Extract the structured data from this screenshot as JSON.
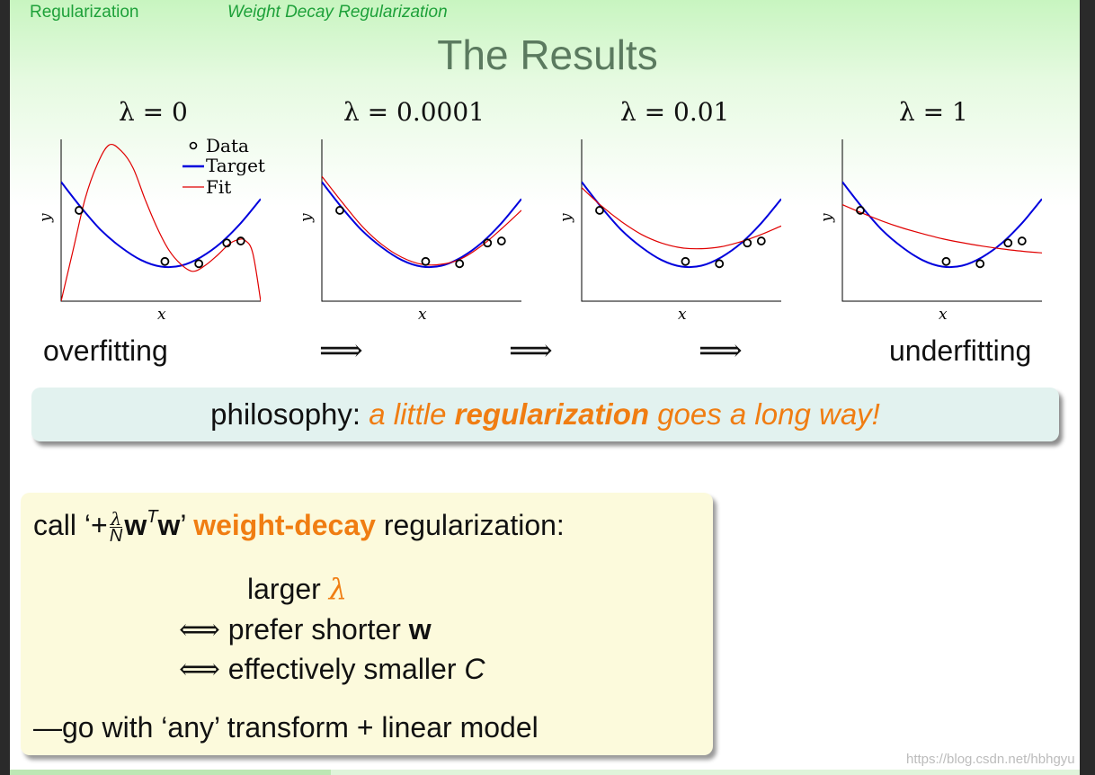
{
  "header": {
    "section": "Regularization",
    "subsection": "Weight Decay Regularization"
  },
  "title": "The Results",
  "panels": [
    {
      "lambda_label": "λ = 0",
      "lambda": 0,
      "fit": [
        [
          0,
          -1.2
        ],
        [
          0.06,
          0.6
        ],
        [
          0.12,
          2.4
        ],
        [
          0.18,
          3.6
        ],
        [
          0.24,
          4.3
        ],
        [
          0.3,
          4.1
        ],
        [
          0.36,
          3.5
        ],
        [
          0.42,
          2.4
        ],
        [
          0.48,
          1.4
        ],
        [
          0.54,
          0.6
        ],
        [
          0.6,
          0.1
        ],
        [
          0.66,
          -0.15
        ],
        [
          0.72,
          0.05
        ],
        [
          0.78,
          0.4
        ],
        [
          0.84,
          0.8
        ],
        [
          0.88,
          0.95
        ],
        [
          0.92,
          0.95
        ],
        [
          0.96,
          0.5
        ],
        [
          1,
          -1.2
        ]
      ]
    },
    {
      "lambda_label": "λ = 0.0001",
      "lambda": 0.0001,
      "fit": [
        [
          0,
          3.2
        ],
        [
          0.1,
          2.3
        ],
        [
          0.2,
          1.45
        ],
        [
          0.3,
          0.8
        ],
        [
          0.4,
          0.35
        ],
        [
          0.5,
          0.1
        ],
        [
          0.6,
          0.1
        ],
        [
          0.7,
          0.3
        ],
        [
          0.8,
          0.75
        ],
        [
          0.9,
          1.35
        ],
        [
          1,
          2.0
        ]
      ]
    },
    {
      "lambda_label": "λ = 0.01",
      "lambda": 0.01,
      "fit": [
        [
          0,
          2.8
        ],
        [
          0.1,
          2.15
        ],
        [
          0.2,
          1.6
        ],
        [
          0.3,
          1.15
        ],
        [
          0.4,
          0.85
        ],
        [
          0.5,
          0.68
        ],
        [
          0.6,
          0.65
        ],
        [
          0.7,
          0.72
        ],
        [
          0.8,
          0.9
        ],
        [
          0.9,
          1.15
        ],
        [
          1,
          1.45
        ]
      ]
    },
    {
      "lambda_label": "λ = 1",
      "lambda": 1,
      "fit": [
        [
          0,
          2.2
        ],
        [
          0.1,
          1.9
        ],
        [
          0.2,
          1.62
        ],
        [
          0.3,
          1.38
        ],
        [
          0.4,
          1.18
        ],
        [
          0.5,
          1.0
        ],
        [
          0.6,
          0.86
        ],
        [
          0.7,
          0.74
        ],
        [
          0.8,
          0.64
        ],
        [
          0.9,
          0.56
        ],
        [
          1,
          0.5
        ]
      ]
    }
  ],
  "chart_data": {
    "type": "line",
    "title": "",
    "xlabel": "x",
    "ylabel": "y",
    "xlim": [
      0,
      1
    ],
    "ylim": [
      -1.2,
      4.5
    ],
    "legend": [
      "Data",
      "Target",
      "Fit"
    ],
    "legend_placement": "top-right",
    "target": [
      [
        0,
        3.0
      ],
      [
        0.1,
        2.1
      ],
      [
        0.2,
        1.3
      ],
      [
        0.3,
        0.7
      ],
      [
        0.4,
        0.25
      ],
      [
        0.5,
        0.02
      ],
      [
        0.6,
        0.05
      ],
      [
        0.7,
        0.35
      ],
      [
        0.8,
        0.85
      ],
      [
        0.9,
        1.55
      ],
      [
        1,
        2.4
      ]
    ],
    "data_points": [
      [
        0.09,
        2.0
      ],
      [
        0.52,
        0.2
      ],
      [
        0.69,
        0.12
      ],
      [
        0.83,
        0.85
      ],
      [
        0.9,
        0.92
      ]
    ],
    "colors": {
      "target": "#0000dd",
      "fit": "#e00000",
      "data": "#000000"
    }
  },
  "legend": {
    "data": "Data",
    "target": "Target",
    "fit": "Fit"
  },
  "progression": {
    "left": "overfitting",
    "arrow": "⟹",
    "right": "underfitting"
  },
  "philosophy": {
    "lead": "philosophy:",
    "part1": "a little",
    "bold": "regularization",
    "part2": "goes a long way!"
  },
  "callout": {
    "line1_prefix": "call ‘+",
    "frac_num": "λ",
    "frac_den": "N",
    "w": "w",
    "T": "T",
    "line1_suffix_quote": "’",
    "line1_bold": "weight-decay",
    "line1_end": "regularization:",
    "item1_text": "larger",
    "item1_symbol": "λ",
    "iff": "⟺",
    "item2_text": "prefer shorter",
    "item2_bold": "w",
    "item3_text": "effectively smaller",
    "item3_italic": "C",
    "last": "—go with ‘any’ transform + linear model"
  },
  "watermark": "https://blog.csdn.net/hbhgyu"
}
